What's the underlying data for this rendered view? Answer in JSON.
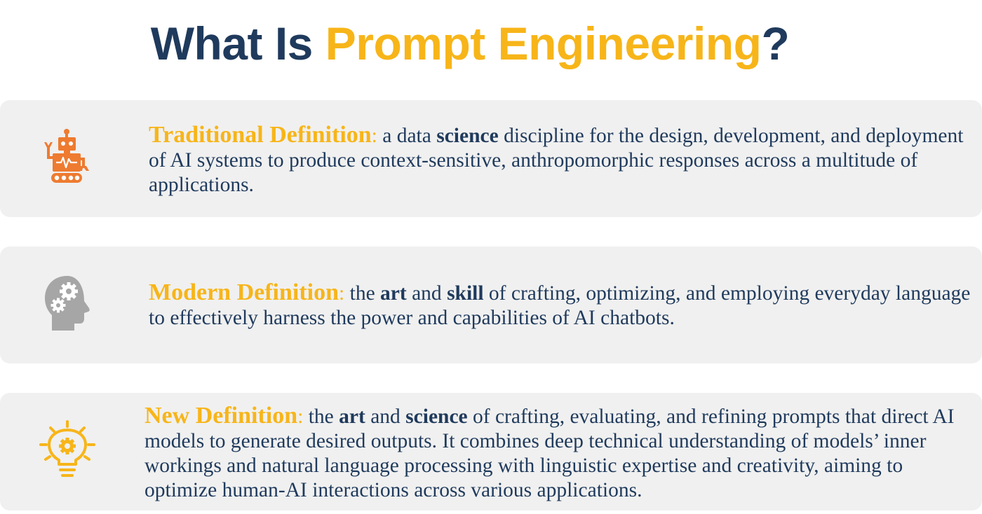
{
  "title": {
    "part1": "What Is ",
    "part2": "Prompt Engineering",
    "part3": "?"
  },
  "colors": {
    "navy": "#1f3a5c",
    "gold": "#f7b519",
    "robot_orange": "#ee7b30",
    "head_gray": "#a6a6a6",
    "card_bg": "#f0f0f0"
  },
  "definitions": [
    {
      "icon": "robot-icon",
      "head": "Traditional Definition",
      "sep": ":",
      "t1": " a data ",
      "b1": "science",
      "t2": " discipline for the design, development, and deployment of AI systems to produce context-sensitive, anthropomorphic responses across a multitude of applications."
    },
    {
      "icon": "head-gears-icon",
      "head": "Modern Definition",
      "sep": ":",
      "t1": " the ",
      "b1": "art",
      "t2": " and ",
      "b2": "skill",
      "t3": " of crafting, optimizing, and employing everyday language to effectively harness the power and capabilities of AI chatbots."
    },
    {
      "icon": "lightbulb-gear-icon",
      "head": "New Definition",
      "sep": ":",
      "t1": " the ",
      "b1": "art",
      "t2": " and ",
      "b2": "science",
      "t3": " of crafting, evaluating, and refining prompts that direct AI models to generate desired outputs. It combines deep technical understanding of models’ inner workings and natural language processing with linguistic expertise and creativity, aiming to optimize human-AI interactions across various applications."
    }
  ]
}
